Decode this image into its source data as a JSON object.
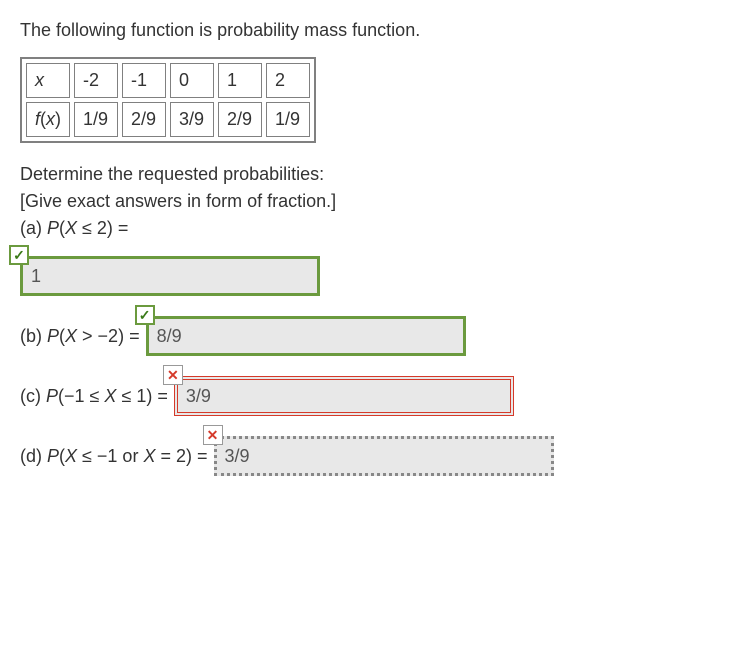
{
  "intro": "The following function is probability mass function.",
  "table": {
    "row1_header": "x",
    "row2_header": "f(x)",
    "cols": [
      "-2",
      "-1",
      "0",
      "1",
      "2"
    ],
    "vals": [
      "1/9",
      "2/9",
      "3/9",
      "2/9",
      "1/9"
    ]
  },
  "q_intro_line1": "Determine the requested probabilities:",
  "q_intro_line2": "[Give exact answers in form of fraction.]",
  "parts": {
    "a": {
      "label_prefix": "(a) ",
      "expr_html": "P(X ≤ 2) =",
      "answer": "1",
      "state": "correct"
    },
    "b": {
      "label_prefix": "(b) ",
      "expr_html": "P(X > −2) =",
      "answer": "8/9",
      "state": "correct"
    },
    "c": {
      "label_prefix": "(c) ",
      "expr_html": "P(−1 ≤ X ≤ 1) =",
      "answer": "3/9",
      "state": "wrong"
    },
    "d": {
      "label_prefix": "(d) ",
      "expr_html": "P(X ≤ −1 or X = 2) =",
      "answer": "3/9",
      "state": "pending"
    }
  },
  "colors": {
    "correct_border": "#6b9a3e",
    "wrong_border": "#d53a2a",
    "pending_border": "#888888",
    "text": "#333333",
    "input_bg": "#e8e8e8"
  },
  "glyphs": {
    "check": "✓",
    "cross": "✕"
  }
}
